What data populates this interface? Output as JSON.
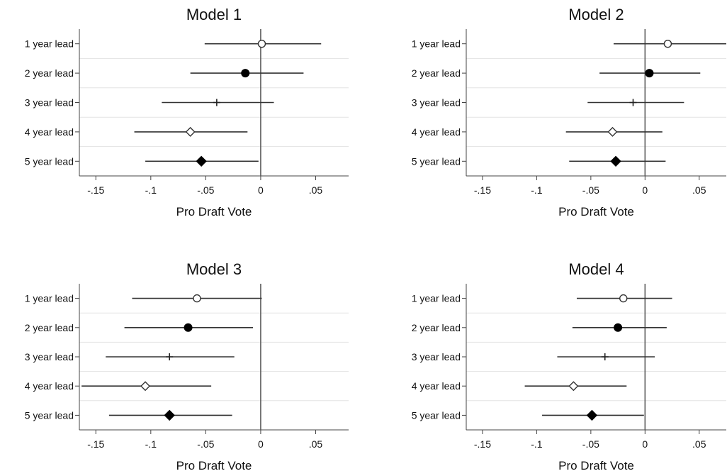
{
  "chart_data": [
    {
      "type": "scatter",
      "title": "Model 1",
      "xlabel": "Pro Draft Vote",
      "xlim": [
        -0.165,
        0.08
      ],
      "xticks": [
        -0.15,
        -0.1,
        -0.05,
        0,
        0.05
      ],
      "xtick_labels": [
        "-.15",
        "-.1",
        "-.05",
        "0",
        ".05"
      ],
      "reference_line": 0,
      "categories": [
        "1 year lead",
        "2 year lead",
        "3 year lead",
        "4 year lead",
        "5 year lead"
      ],
      "markers": [
        "circle-open",
        "circle-filled",
        "plus",
        "diamond-open",
        "diamond-filled"
      ],
      "estimates": [
        0.001,
        -0.014,
        -0.04,
        -0.064,
        -0.054
      ],
      "ci_low": [
        -0.051,
        -0.064,
        -0.09,
        -0.115,
        -0.105
      ],
      "ci_high": [
        0.055,
        0.039,
        0.012,
        -0.012,
        -0.002
      ]
    },
    {
      "type": "scatter",
      "title": "Model 2",
      "xlabel": "Pro Draft Vote",
      "xlim": [
        -0.165,
        0.075
      ],
      "xticks": [
        -0.15,
        -0.1,
        -0.05,
        0,
        0.05
      ],
      "xtick_labels": [
        "-.15",
        "-.1",
        "-.05",
        "0",
        ".05"
      ],
      "reference_line": 0,
      "categories": [
        "1 year lead",
        "2 year lead",
        "3 year lead",
        "4 year lead",
        "5 year lead"
      ],
      "markers": [
        "circle-open",
        "circle-filled",
        "plus",
        "diamond-open",
        "diamond-filled"
      ],
      "estimates": [
        0.021,
        0.004,
        -0.011,
        -0.03,
        -0.027
      ],
      "ci_low": [
        -0.029,
        -0.042,
        -0.053,
        -0.073,
        -0.07
      ],
      "ci_high": [
        0.075,
        0.051,
        0.036,
        0.016,
        0.019
      ]
    },
    {
      "type": "scatter",
      "title": "Model 3",
      "xlabel": "Pro Draft Vote",
      "xlim": [
        -0.165,
        0.08
      ],
      "xticks": [
        -0.15,
        -0.1,
        -0.05,
        0,
        0.05
      ],
      "xtick_labels": [
        "-.15",
        "-.1",
        "-.05",
        "0",
        ".05"
      ],
      "reference_line": 0,
      "categories": [
        "1 year lead",
        "2 year lead",
        "3 year lead",
        "4 year lead",
        "5 year lead"
      ],
      "markers": [
        "circle-open",
        "circle-filled",
        "plus",
        "diamond-open",
        "diamond-filled"
      ],
      "estimates": [
        -0.058,
        -0.066,
        -0.083,
        -0.105,
        -0.083
      ],
      "ci_low": [
        -0.117,
        -0.124,
        -0.141,
        -0.163,
        -0.138
      ],
      "ci_high": [
        0.001,
        -0.007,
        -0.024,
        -0.045,
        -0.026
      ]
    },
    {
      "type": "scatter",
      "title": "Model 4",
      "xlabel": "Pro Draft Vote",
      "xlim": [
        -0.165,
        0.075
      ],
      "xticks": [
        -0.15,
        -0.1,
        -0.05,
        0,
        0.05
      ],
      "xtick_labels": [
        "-.15",
        "-.1",
        "-.05",
        "0",
        ".05"
      ],
      "reference_line": 0,
      "categories": [
        "1 year lead",
        "2 year lead",
        "3 year lead",
        "4 year lead",
        "5 year lead"
      ],
      "markers": [
        "circle-open",
        "circle-filled",
        "plus",
        "diamond-open",
        "diamond-filled"
      ],
      "estimates": [
        -0.02,
        -0.025,
        -0.037,
        -0.066,
        -0.049
      ],
      "ci_low": [
        -0.063,
        -0.067,
        -0.081,
        -0.111,
        -0.095
      ],
      "ci_high": [
        0.025,
        0.02,
        0.009,
        -0.017,
        -0.001
      ]
    }
  ]
}
